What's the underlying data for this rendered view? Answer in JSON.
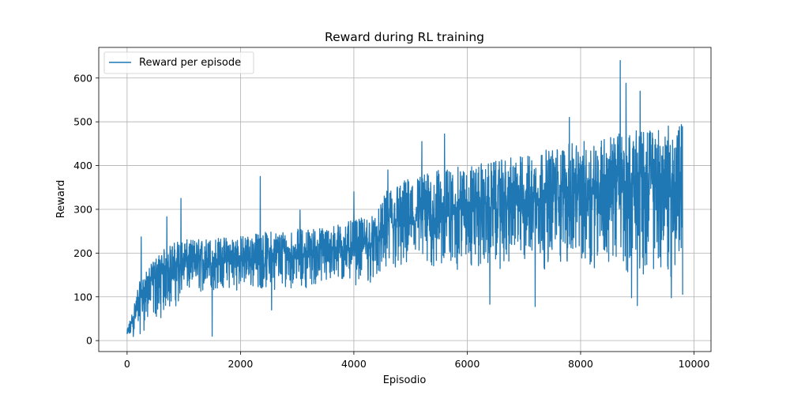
{
  "chart_data": {
    "type": "line",
    "title": "Reward during RL training",
    "xlabel": "Episodio",
    "ylabel": "Reward",
    "xlim": [
      -500,
      10300
    ],
    "ylim": [
      -25,
      670
    ],
    "xticks": [
      0,
      2000,
      4000,
      6000,
      8000,
      10000
    ],
    "yticks": [
      0,
      100,
      200,
      300,
      400,
      500,
      600
    ],
    "xtick_labels": [
      "0",
      "2000",
      "4000",
      "6000",
      "8000",
      "10000"
    ],
    "ytick_labels": [
      "0",
      "100",
      "200",
      "300",
      "400",
      "500",
      "600"
    ],
    "grid": true,
    "legend": {
      "position": "top-left"
    },
    "series": [
      {
        "name": "Reward per episode",
        "color": "#1f77b4",
        "episodes": 9800,
        "envelope": {
          "x": [
            0,
            100,
            200,
            300,
            500,
            700,
            900,
            1000,
            1500,
            2000,
            2500,
            3000,
            3500,
            4000,
            4400,
            4600,
            5000,
            5500,
            6000,
            6500,
            7000,
            7500,
            8000,
            8500,
            9000,
            9500,
            9800
          ],
          "low": [
            0,
            5,
            10,
            20,
            40,
            60,
            80,
            100,
            110,
            115,
            115,
            120,
            120,
            125,
            130,
            140,
            145,
            150,
            155,
            160,
            160,
            160,
            165,
            160,
            150,
            140,
            140
          ],
          "high": [
            25,
            70,
            130,
            150,
            190,
            215,
            230,
            230,
            235,
            240,
            250,
            255,
            260,
            275,
            290,
            350,
            375,
            390,
            400,
            410,
            425,
            440,
            455,
            470,
            480,
            490,
            495
          ],
          "mean": [
            10,
            40,
            80,
            100,
            130,
            150,
            160,
            165,
            170,
            175,
            180,
            185,
            190,
            200,
            210,
            240,
            255,
            265,
            275,
            285,
            295,
            305,
            315,
            320,
            320,
            320,
            320
          ]
        },
        "spikes": [
          {
            "x": 250,
            "y": 237
          },
          {
            "x": 700,
            "y": 283
          },
          {
            "x": 950,
            "y": 325
          },
          {
            "x": 1500,
            "y": 10
          },
          {
            "x": 2350,
            "y": 375
          },
          {
            "x": 2550,
            "y": 70
          },
          {
            "x": 3050,
            "y": 298
          },
          {
            "x": 4000,
            "y": 340
          },
          {
            "x": 4600,
            "y": 390
          },
          {
            "x": 5200,
            "y": 455
          },
          {
            "x": 5600,
            "y": 472
          },
          {
            "x": 6400,
            "y": 83
          },
          {
            "x": 7200,
            "y": 78
          },
          {
            "x": 7800,
            "y": 510
          },
          {
            "x": 8700,
            "y": 640
          },
          {
            "x": 8800,
            "y": 588
          },
          {
            "x": 8900,
            "y": 98
          },
          {
            "x": 9000,
            "y": 80
          },
          {
            "x": 9050,
            "y": 570
          },
          {
            "x": 9600,
            "y": 98
          },
          {
            "x": 9800,
            "y": 105
          }
        ]
      }
    ]
  }
}
